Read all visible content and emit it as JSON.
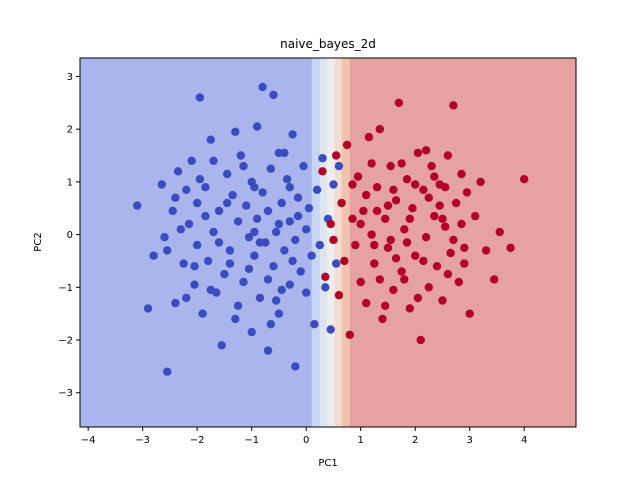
{
  "chart_data": {
    "type": "scatter",
    "title": "naive_bayes_2d",
    "xlabel": "PC1",
    "ylabel": "PC2",
    "xlim": [
      -4.15,
      4.95
    ],
    "ylim": [
      -3.65,
      3.35
    ],
    "xticks": [
      -4,
      -3,
      -2,
      -1,
      0,
      1,
      2,
      3,
      4
    ],
    "yticks": [
      -3,
      -2,
      -1,
      0,
      1,
      2,
      3
    ],
    "xtick_labels": [
      "−4",
      "−3",
      "−2",
      "−1",
      "0",
      "1",
      "2",
      "3",
      "4"
    ],
    "ytick_labels": [
      "−3",
      "−2",
      "−1",
      "0",
      "1",
      "2",
      "3"
    ],
    "grid": false,
    "decision_regions": [
      {
        "x_from": -4.15,
        "x_to": 0.1,
        "color": "#a9b5ec"
      },
      {
        "x_from": 0.1,
        "x_to": 0.25,
        "color": "#c7d6f7"
      },
      {
        "x_from": 0.25,
        "x_to": 0.38,
        "color": "#dfe5ef"
      },
      {
        "x_from": 0.38,
        "x_to": 0.52,
        "color": "#eeeeee"
      },
      {
        "x_from": 0.52,
        "x_to": 0.65,
        "color": "#f4ddd0"
      },
      {
        "x_from": 0.65,
        "x_to": 0.8,
        "color": "#f1c3ae"
      },
      {
        "x_from": 0.8,
        "x_to": 4.95,
        "color": "#e6a1a1"
      }
    ],
    "series": [
      {
        "color": "#3b4cc0",
        "points": [
          [
            -3.1,
            0.55
          ],
          [
            -2.9,
            -1.4
          ],
          [
            -2.8,
            -0.4
          ],
          [
            -2.65,
            0.95
          ],
          [
            -2.6,
            -0.05
          ],
          [
            -2.55,
            -0.3
          ],
          [
            -2.55,
            -2.6
          ],
          [
            -2.45,
            0.45
          ],
          [
            -2.4,
            -1.3
          ],
          [
            -2.35,
            1.2
          ],
          [
            -2.3,
            0.1
          ],
          [
            -2.25,
            -0.55
          ],
          [
            -2.2,
            -1.2
          ],
          [
            -2.15,
            0.2
          ],
          [
            -2.1,
            1.4
          ],
          [
            -2.05,
            -0.95
          ],
          [
            -2.0,
            0.6
          ],
          [
            -2.0,
            -0.2
          ],
          [
            -1.95,
            2.6
          ],
          [
            -1.9,
            -1.5
          ],
          [
            -1.85,
            0.9
          ],
          [
            -1.8,
            -0.5
          ],
          [
            -1.75,
            1.8
          ],
          [
            -1.7,
            0.05
          ],
          [
            -1.65,
            -1.1
          ],
          [
            -1.6,
            0.45
          ],
          [
            -1.55,
            -2.1
          ],
          [
            -1.5,
            -0.75
          ],
          [
            -1.45,
            1.15
          ],
          [
            -1.4,
            -0.3
          ],
          [
            -1.35,
            0.75
          ],
          [
            -1.3,
            -1.6
          ],
          [
            -1.25,
            0.25
          ],
          [
            -1.2,
            1.5
          ],
          [
            -1.15,
            -0.9
          ],
          [
            -1.1,
            0.55
          ],
          [
            -1.05,
            -0.05
          ],
          [
            -1.0,
            1.0
          ],
          [
            -1.0,
            -1.85
          ],
          [
            -0.95,
            -0.4
          ],
          [
            -0.9,
            0.3
          ],
          [
            -0.9,
            2.05
          ],
          [
            -0.85,
            -1.2
          ],
          [
            -0.8,
            0.8
          ],
          [
            -0.8,
            2.8
          ],
          [
            -0.75,
            -0.15
          ],
          [
            -0.7,
            0.45
          ],
          [
            -0.7,
            -2.2
          ],
          [
            -0.65,
            1.25
          ],
          [
            -0.6,
            -0.6
          ],
          [
            -0.6,
            2.65
          ],
          [
            -0.55,
            0.05
          ],
          [
            -0.5,
            1.55
          ],
          [
            -0.5,
            -1.5
          ],
          [
            -0.45,
            0.6
          ],
          [
            -0.4,
            -0.3
          ],
          [
            -0.35,
            1.05
          ],
          [
            -0.3,
            -0.95
          ],
          [
            -0.3,
            0.25
          ],
          [
            -0.25,
            1.9
          ],
          [
            -0.2,
            -0.1
          ],
          [
            -0.2,
            -2.5
          ],
          [
            -0.15,
            0.7
          ],
          [
            -0.1,
            -0.7
          ],
          [
            -0.05,
            1.3
          ],
          [
            0.0,
            0.1
          ],
          [
            0.0,
            -1.1
          ],
          [
            0.05,
            0.5
          ],
          [
            0.1,
            -0.4
          ],
          [
            0.15,
            -1.7
          ],
          [
            0.2,
            0.85
          ],
          [
            0.25,
            -0.2
          ],
          [
            0.3,
            1.45
          ],
          [
            0.35,
            -1.0
          ],
          [
            0.4,
            0.3
          ],
          [
            0.45,
            -1.8
          ],
          [
            0.5,
            0.95
          ],
          [
            0.55,
            -0.55
          ],
          [
            0.6,
            1.3
          ],
          [
            -1.75,
            -1.05
          ],
          [
            -2.2,
            0.85
          ],
          [
            -1.3,
            1.95
          ],
          [
            -0.55,
            -1.25
          ],
          [
            -1.6,
            -0.15
          ],
          [
            -0.95,
            0.9
          ],
          [
            -0.4,
            1.55
          ],
          [
            -1.05,
            -0.65
          ],
          [
            -1.85,
            0.35
          ],
          [
            -0.25,
            -0.5
          ],
          [
            -0.7,
            -0.85
          ],
          [
            -1.45,
            0.6
          ],
          [
            -2.05,
            -0.6
          ],
          [
            -1.15,
            1.3
          ],
          [
            -0.3,
            0.9
          ],
          [
            -0.85,
            -0.15
          ],
          [
            -1.25,
            -1.35
          ],
          [
            -0.5,
            0.2
          ],
          [
            -1.95,
            1.05
          ],
          [
            -0.65,
            -1.7
          ],
          [
            -1.7,
            1.4
          ],
          [
            -0.15,
            0.35
          ],
          [
            -1.4,
            -0.55
          ],
          [
            -0.95,
            0.05
          ],
          [
            -0.45,
            -1.05
          ],
          [
            -2.4,
            0.7
          ]
        ]
      },
      {
        "color": "#b40426",
        "points": [
          [
            0.3,
            1.2
          ],
          [
            0.35,
            -0.8
          ],
          [
            0.45,
            0.2
          ],
          [
            0.5,
            -0.1
          ],
          [
            0.55,
            1.5
          ],
          [
            0.6,
            -1.15
          ],
          [
            0.65,
            0.6
          ],
          [
            0.7,
            -0.5
          ],
          [
            0.75,
            1.7
          ],
          [
            0.8,
            -1.9
          ],
          [
            0.85,
            0.3
          ],
          [
            0.9,
            -0.2
          ],
          [
            0.95,
            1.1
          ],
          [
            1.0,
            -0.9
          ],
          [
            1.05,
            0.45
          ],
          [
            1.1,
            -1.3
          ],
          [
            1.15,
            1.85
          ],
          [
            1.2,
            0.0
          ],
          [
            1.25,
            -0.55
          ],
          [
            1.3,
            0.9
          ],
          [
            1.35,
            2.0
          ],
          [
            1.4,
            -1.6
          ],
          [
            1.45,
            0.3
          ],
          [
            1.5,
            -0.25
          ],
          [
            1.55,
            1.3
          ],
          [
            1.6,
            -1.05
          ],
          [
            1.65,
            0.65
          ],
          [
            1.7,
            2.5
          ],
          [
            1.75,
            -0.7
          ],
          [
            1.8,
            0.1
          ],
          [
            1.85,
            1.05
          ],
          [
            1.9,
            -1.4
          ],
          [
            1.95,
            0.5
          ],
          [
            2.0,
            -0.4
          ],
          [
            2.05,
            1.55
          ],
          [
            2.1,
            -2.0
          ],
          [
            2.15,
            0.85
          ],
          [
            2.2,
            -0.05
          ],
          [
            2.25,
            -1.0
          ],
          [
            2.3,
            1.3
          ],
          [
            2.35,
            0.35
          ],
          [
            2.4,
            -0.6
          ],
          [
            2.45,
            0.95
          ],
          [
            2.5,
            -1.25
          ],
          [
            2.55,
            0.15
          ],
          [
            2.6,
            1.5
          ],
          [
            2.65,
            -0.35
          ],
          [
            2.7,
            2.45
          ],
          [
            2.75,
            0.6
          ],
          [
            2.8,
            -0.9
          ],
          [
            2.85,
            1.15
          ],
          [
            2.9,
            -0.25
          ],
          [
            2.95,
            0.8
          ],
          [
            3.0,
            -1.5
          ],
          [
            3.1,
            0.35
          ],
          [
            3.2,
            1.0
          ],
          [
            3.3,
            -0.3
          ],
          [
            3.45,
            -0.85
          ],
          [
            3.55,
            0.05
          ],
          [
            3.75,
            -0.25
          ],
          [
            4.0,
            1.05
          ],
          [
            1.3,
            0.45
          ],
          [
            1.55,
            -0.1
          ],
          [
            1.9,
            0.3
          ],
          [
            2.15,
            -0.5
          ],
          [
            2.45,
            0.55
          ],
          [
            1.75,
            1.35
          ],
          [
            2.05,
            -1.2
          ],
          [
            1.35,
            -0.85
          ],
          [
            2.6,
            -0.75
          ],
          [
            1.6,
            0.85
          ],
          [
            2.35,
            1.1
          ],
          [
            1.1,
            0.75
          ],
          [
            2.85,
            0.2
          ],
          [
            1.85,
            -0.15
          ],
          [
            2.25,
            0.7
          ],
          [
            1.45,
            -1.35
          ],
          [
            2.7,
            -0.1
          ],
          [
            1.2,
            1.35
          ],
          [
            2.0,
            0.95
          ],
          [
            1.65,
            -0.45
          ],
          [
            2.5,
            0.3
          ],
          [
            1.0,
            0.2
          ],
          [
            2.9,
            -0.55
          ],
          [
            1.8,
            -0.85
          ],
          [
            2.2,
            1.6
          ],
          [
            1.25,
            -0.2
          ],
          [
            2.55,
            0.9
          ],
          [
            0.85,
            0.95
          ],
          [
            1.5,
            0.55
          ]
        ]
      }
    ]
  }
}
